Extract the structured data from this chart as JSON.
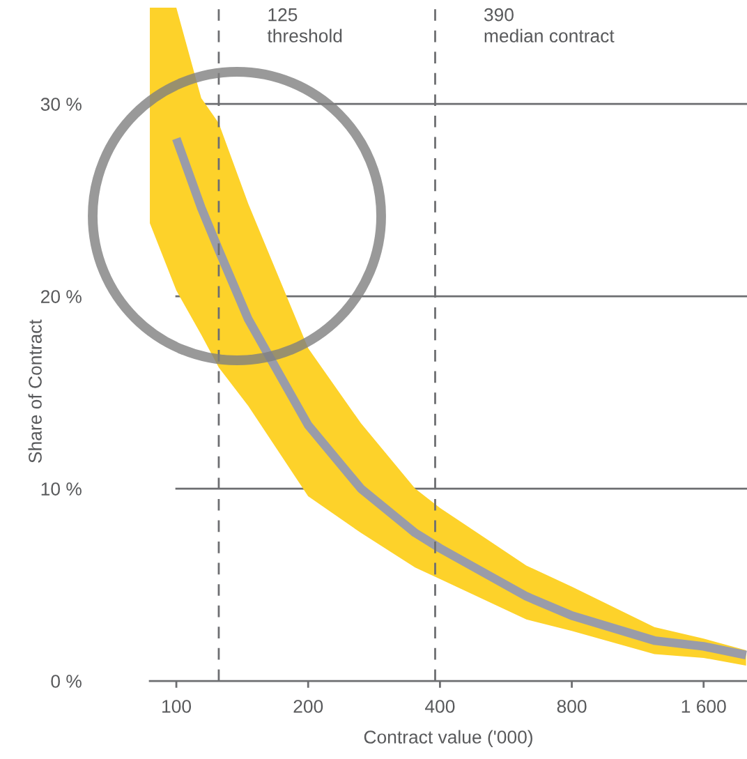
{
  "chart_data": {
    "type": "line",
    "xlabel": "Contract value ('000)",
    "ylabel": "Share of Contract",
    "log": "x",
    "xlim": [
      87,
      2010
    ],
    "xticks": [
      100,
      200,
      400,
      800,
      {
        "value": 1600,
        "label": "1 600"
      }
    ],
    "ylim": [
      0,
      35
    ],
    "yticks": [
      {
        "value": 0,
        "label": "0 %"
      },
      {
        "value": 10,
        "label": "10 %"
      },
      {
        "value": 20,
        "label": "20 %"
      },
      {
        "value": 30,
        "label": "30 %"
      }
    ],
    "grid": "y",
    "series": [
      {
        "color": "#9a9ca8",
        "x": [
          87,
          100,
          114,
          125,
          146,
          200,
          264,
          351,
          400,
          630,
          800,
          1235,
          1600,
          2000
        ],
        "values": [
          null,
          28.2,
          24.6,
          22.4,
          18.8,
          13.3,
          10.0,
          7.7,
          6.9,
          4.4,
          3.4,
          2.1,
          1.8,
          1.35
        ],
        "lower": [
          23.8,
          20.3,
          18.0,
          16.3,
          14.3,
          9.6,
          7.7,
          5.9,
          5.3,
          3.2,
          2.6,
          1.4,
          1.2,
          0.8
        ],
        "upper": [
          35,
          35,
          30.3,
          29.0,
          24.8,
          17.3,
          13.4,
          10.0,
          9.0,
          6.0,
          4.9,
          2.8,
          2.2,
          1.6
        ]
      }
    ],
    "ref_lines": [
      {
        "axis": "x",
        "value": 125,
        "label": "125\nthreshold",
        "color": "#6d6e71",
        "line_style": "dashed"
      },
      {
        "axis": "x",
        "value": 390,
        "label": "390\nmedian contract",
        "color": "#6d6e71",
        "line_style": "dashed"
      }
    ]
  }
}
